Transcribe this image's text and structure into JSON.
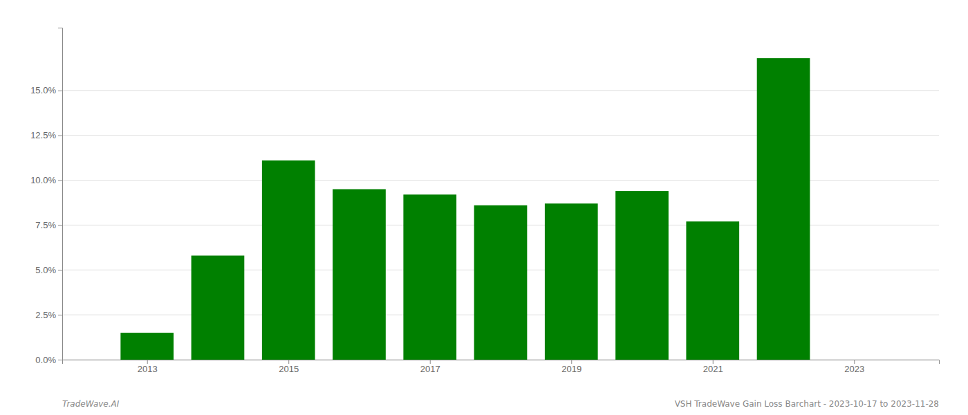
{
  "chart_data": {
    "type": "bar",
    "x": [
      2013,
      2014,
      2015,
      2016,
      2017,
      2018,
      2019,
      2020,
      2021,
      2022
    ],
    "values": [
      0.015,
      0.058,
      0.111,
      0.095,
      0.092,
      0.086,
      0.087,
      0.094,
      0.077,
      0.168
    ],
    "color": "#008000",
    "xlim": [
      2011.8,
      2024.2
    ],
    "xticks": [
      2013,
      2015,
      2017,
      2019,
      2021,
      2023
    ],
    "ylim": [
      0,
      0.185
    ],
    "yticks": [
      {
        "value": 0.0,
        "label": "0.0%"
      },
      {
        "value": 0.025,
        "label": "2.5%"
      },
      {
        "value": 0.05,
        "label": "5.0%"
      },
      {
        "value": 0.075,
        "label": "7.5%"
      },
      {
        "value": 0.1,
        "label": "10.0%"
      },
      {
        "value": 0.125,
        "label": "12.5%"
      },
      {
        "value": 0.15,
        "label": "15.0%"
      }
    ],
    "grid": true,
    "annotations": [
      "TradeWave.AI",
      "VSH TradeWave Gain Loss Barchart - 2023-10-17 to 2023-11-28"
    ]
  }
}
